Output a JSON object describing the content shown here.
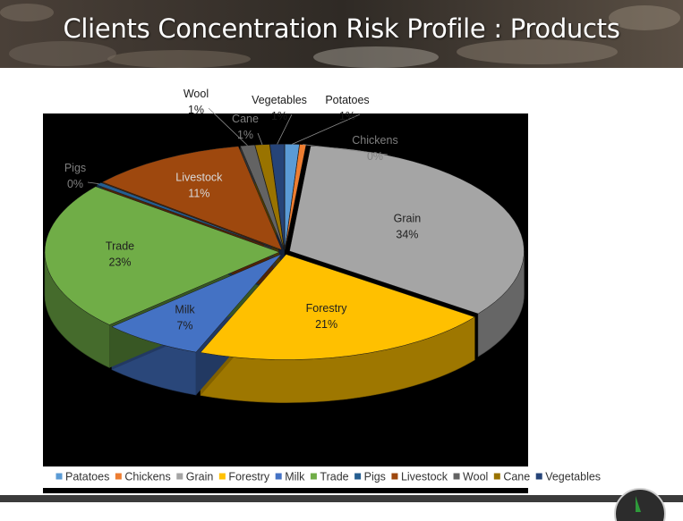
{
  "slide": {
    "title": "Clients Concentration Risk Profile : Products"
  },
  "chart_data": {
    "type": "pie",
    "style": "3d-exploded",
    "title": "",
    "slices": [
      {
        "key": "potatoes",
        "label": "Potatoes",
        "legend": "Patatoes",
        "value": 1,
        "pct_label": "1%",
        "color": "#5b9bd5"
      },
      {
        "key": "chickens",
        "label": "Chickens",
        "legend": "Chickens",
        "value": 0,
        "pct_label": "0%",
        "color": "#ed7d31"
      },
      {
        "key": "grain",
        "label": "Grain",
        "legend": "Grain",
        "value": 34,
        "pct_label": "34%",
        "color": "#a5a5a5"
      },
      {
        "key": "forestry",
        "label": "Forestry",
        "legend": "Forestry",
        "value": 21,
        "pct_label": "21%",
        "color": "#ffc000"
      },
      {
        "key": "milk",
        "label": "Milk",
        "legend": "Milk",
        "value": 7,
        "pct_label": "7%",
        "color": "#4472c4"
      },
      {
        "key": "trade",
        "label": "Trade",
        "legend": "Trade",
        "value": 23,
        "pct_label": "23%",
        "color": "#70ad47"
      },
      {
        "key": "pigs",
        "label": "Pigs",
        "legend": "Pigs",
        "value": 0,
        "pct_label": "0%",
        "color": "#255e91"
      },
      {
        "key": "livestock",
        "label": "Livestock",
        "legend": "Livestock",
        "value": 11,
        "pct_label": "11%",
        "color": "#9e480e"
      },
      {
        "key": "wool",
        "label": "Wool",
        "legend": "Wool",
        "value": 1,
        "pct_label": "1%",
        "color": "#636363"
      },
      {
        "key": "cane",
        "label": "Cane",
        "legend": "Cane",
        "value": 1,
        "pct_label": "1%",
        "color": "#997300"
      },
      {
        "key": "vegetables",
        "label": "Vegetables",
        "legend": "Vegetables",
        "value": 1,
        "pct_label": "1%",
        "color": "#264478"
      }
    ],
    "legend_position": "bottom"
  }
}
